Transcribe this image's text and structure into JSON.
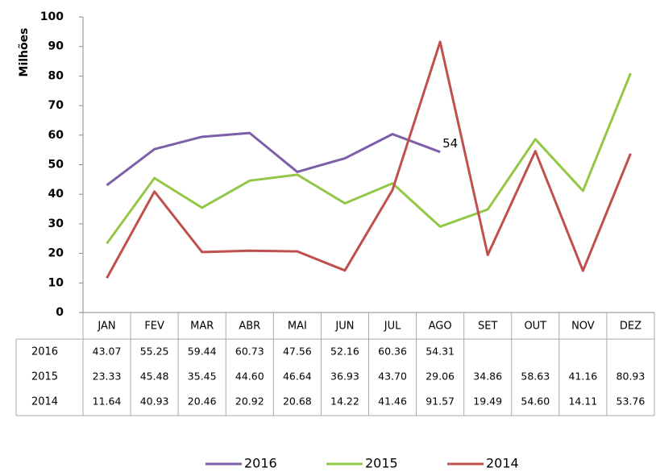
{
  "chart_data": {
    "type": "line",
    "y_label": "Milhões",
    "categories": [
      "JAN",
      "FEV",
      "MAR",
      "ABR",
      "MAI",
      "JUN",
      "JUL",
      "AGO",
      "SET",
      "OUT",
      "NOV",
      "DEZ"
    ],
    "ylim": [
      0,
      100
    ],
    "yticks": [
      0,
      10,
      20,
      30,
      40,
      50,
      60,
      70,
      80,
      90,
      100
    ],
    "grid": false,
    "legend": "bottom",
    "series": [
      {
        "name": "2016",
        "color": "#7d5fa8",
        "values": [
          43.07,
          55.25,
          59.44,
          60.73,
          47.56,
          52.16,
          60.36,
          54.31,
          null,
          null,
          null,
          null
        ],
        "value_labels": [
          "43.07",
          "55.25",
          "59.44",
          "60.73",
          "47.56",
          "52.16",
          "60.36",
          "54.31",
          null,
          null,
          null,
          null
        ],
        "point_label": {
          "category": "AGO",
          "label": "54"
        }
      },
      {
        "name": "2015",
        "color": "#93c748",
        "values": [
          23.33,
          45.48,
          35.45,
          44.6,
          46.64,
          36.93,
          43.7,
          29.06,
          34.86,
          58.63,
          41.16,
          80.93
        ],
        "value_labels": [
          "23.33",
          "45.48",
          "35.45",
          "44.60",
          "46.64",
          "36.93",
          "43.70",
          "29.06",
          "34.86",
          "58.63",
          "41.16",
          "80.93"
        ]
      },
      {
        "name": "2014",
        "color": "#c0504d",
        "values": [
          11.64,
          40.93,
          20.46,
          20.92,
          20.68,
          14.22,
          41.46,
          91.57,
          19.49,
          54.6,
          14.11,
          53.76
        ],
        "value_labels": [
          "11.64",
          "40.93",
          "20.46",
          "20.92",
          "20.68",
          "14.22",
          "41.46",
          "91.57",
          "19.49",
          "54.60",
          "14.11",
          "53.76"
        ]
      }
    ]
  }
}
